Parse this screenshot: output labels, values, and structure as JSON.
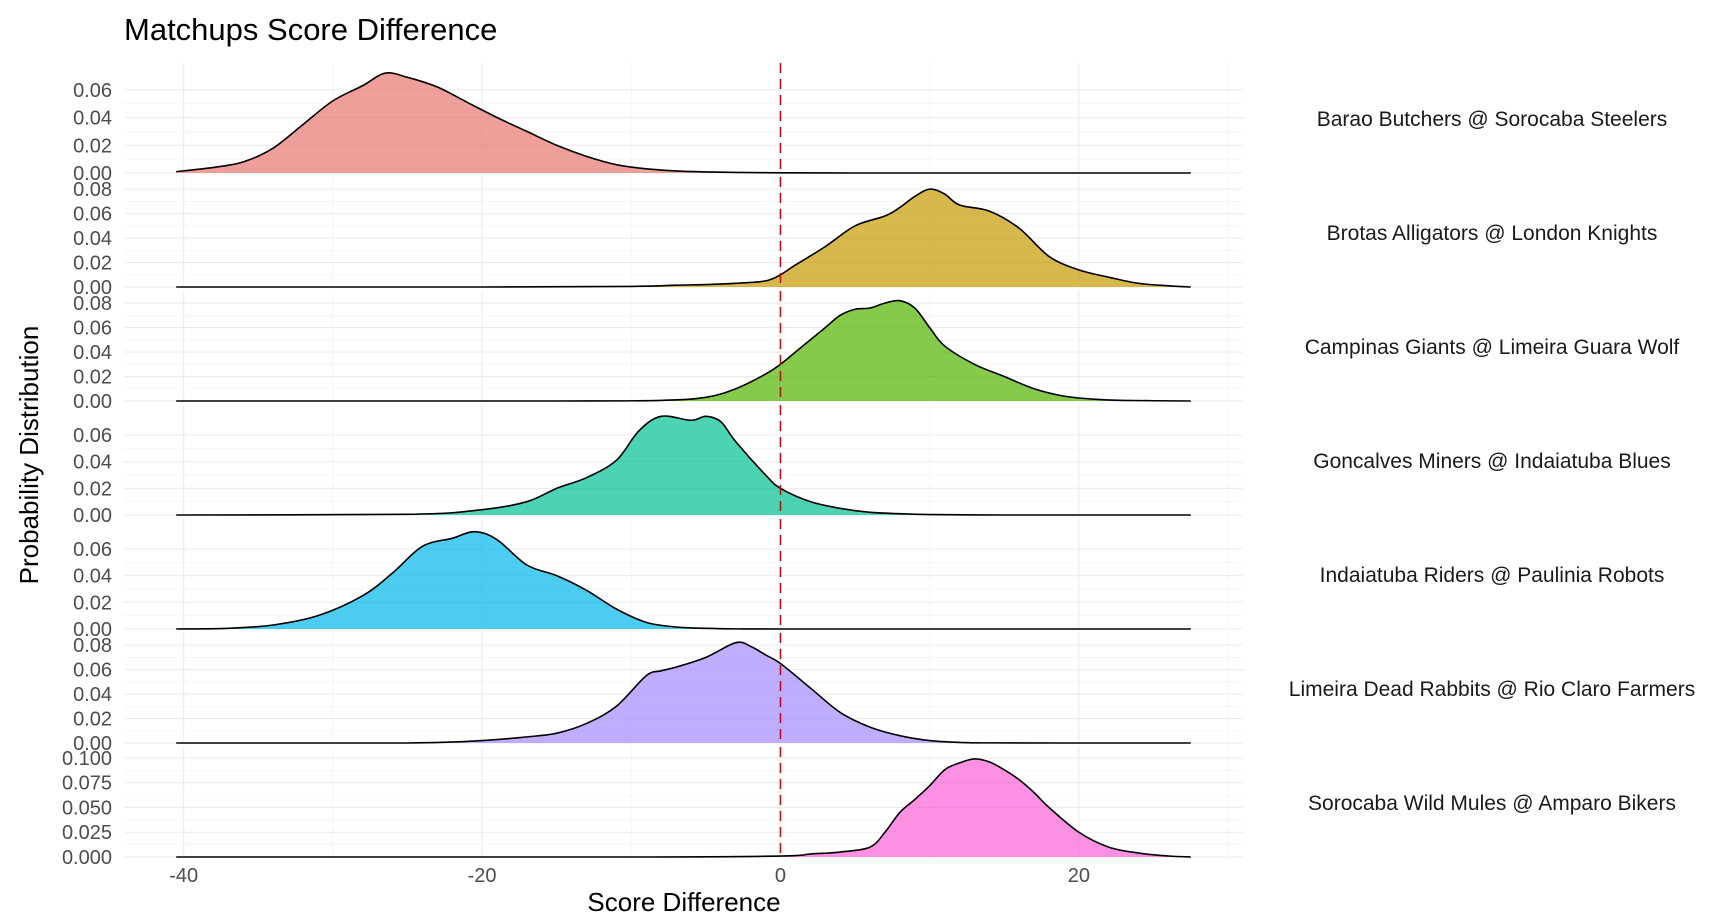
{
  "chart_data": {
    "type": "area",
    "title": "Matchups Score Difference",
    "xlabel": "Score Difference",
    "ylabel": "Probability Distribution",
    "x_ticks": [
      -40,
      -20,
      0,
      20
    ],
    "x_tick_labels": [
      "-40",
      "-20",
      "0",
      "20"
    ],
    "xlim": [
      -44,
      31
    ],
    "reference_line": {
      "x": 0,
      "style": "dashed",
      "color": "#e00000"
    },
    "grid": true,
    "legend": "none",
    "panels": [
      {
        "name": "Barao Butchers @ Sorocaba Steelers",
        "color": "#E8766D",
        "y_ticks": [
          0.0,
          0.02,
          0.04,
          0.06
        ],
        "y_tick_labels": [
          "0.00",
          "0.02",
          "0.04",
          "0.06"
        ],
        "ylim": [
          0,
          0.075
        ],
        "x": [
          -40.5,
          -38,
          -36,
          -34,
          -32,
          -30,
          -28,
          -26.5,
          -25,
          -23,
          -21,
          -19,
          -17,
          -15,
          -13,
          -11,
          -9,
          -7,
          -5,
          -3,
          0,
          5,
          10,
          20,
          27.5
        ],
        "y": [
          0.001,
          0.004,
          0.008,
          0.018,
          0.035,
          0.052,
          0.063,
          0.072,
          0.069,
          0.062,
          0.051,
          0.04,
          0.03,
          0.02,
          0.012,
          0.006,
          0.003,
          0.0015,
          0.0008,
          0.0004,
          0.0001,
          0.0,
          0.0,
          0.0,
          0.0
        ]
      },
      {
        "name": "Brotas Alligators @ London Knights",
        "color": "#C49A00",
        "y_ticks": [
          0.0,
          0.02,
          0.04,
          0.06,
          0.08
        ],
        "y_tick_labels": [
          "0.00",
          "0.02",
          "0.04",
          "0.06",
          "0.08"
        ],
        "ylim": [
          0,
          0.085
        ],
        "x": [
          -40.5,
          -20,
          -10,
          -7,
          -5,
          -3,
          -1,
          0,
          1,
          3,
          5,
          7,
          8,
          9,
          10,
          11,
          12,
          14,
          16,
          18,
          20,
          22,
          24,
          26,
          27.5
        ],
        "y": [
          0.0,
          0.0,
          0.0005,
          0.0015,
          0.002,
          0.003,
          0.005,
          0.01,
          0.018,
          0.033,
          0.05,
          0.058,
          0.065,
          0.074,
          0.08,
          0.076,
          0.067,
          0.062,
          0.048,
          0.025,
          0.014,
          0.008,
          0.003,
          0.001,
          0.0
        ]
      },
      {
        "name": "Campinas Giants @ Limeira Guara Wolf",
        "color": "#53B400",
        "y_ticks": [
          0.0,
          0.02,
          0.04,
          0.06,
          0.08
        ],
        "y_tick_labels": [
          "0.00",
          "0.02",
          "0.04",
          "0.06",
          "0.08"
        ],
        "ylim": [
          0,
          0.085
        ],
        "x": [
          -40.5,
          -15,
          -8,
          -5,
          -3,
          -1,
          0,
          1,
          2,
          3,
          4,
          5,
          6,
          7,
          8,
          9,
          10,
          11,
          13,
          15,
          17,
          19,
          21,
          23,
          27.5
        ],
        "y": [
          0.0,
          0.0,
          0.0005,
          0.003,
          0.01,
          0.022,
          0.03,
          0.04,
          0.05,
          0.06,
          0.07,
          0.075,
          0.076,
          0.08,
          0.082,
          0.076,
          0.06,
          0.045,
          0.03,
          0.02,
          0.01,
          0.004,
          0.0015,
          0.0005,
          0.0
        ]
      },
      {
        "name": "Goncalves Miners @ Indaiatuba Blues",
        "color": "#00C094",
        "y_ticks": [
          0.0,
          0.02,
          0.04,
          0.06
        ],
        "y_tick_labels": [
          "0.00",
          "0.02",
          "0.04",
          "0.06"
        ],
        "ylim": [
          0,
          0.078
        ],
        "x": [
          -40.5,
          -25,
          -20,
          -17,
          -15,
          -13,
          -11,
          -9.5,
          -8,
          -6,
          -5,
          -4,
          -3,
          -1,
          0,
          2,
          4,
          6,
          8,
          10,
          15,
          20,
          27.5
        ],
        "y": [
          0.0,
          0.0005,
          0.004,
          0.01,
          0.02,
          0.028,
          0.041,
          0.063,
          0.074,
          0.071,
          0.074,
          0.07,
          0.055,
          0.03,
          0.02,
          0.01,
          0.005,
          0.002,
          0.001,
          0.0003,
          0.0,
          0.0,
          0.0
        ]
      },
      {
        "name": "Indaiatuba Riders @ Paulinia Robots",
        "color": "#00B6EB",
        "y_ticks": [
          0.0,
          0.02,
          0.04,
          0.06
        ],
        "y_tick_labels": [
          "0.00",
          "0.02",
          "0.04",
          "0.06"
        ],
        "ylim": [
          0,
          0.078
        ],
        "x": [
          -40.5,
          -37,
          -34,
          -31,
          -28,
          -26,
          -24,
          -22,
          -20.5,
          -19,
          -17,
          -15,
          -13,
          -11,
          -9,
          -7,
          -5,
          -3,
          0,
          10,
          27.5
        ],
        "y": [
          0.0,
          0.0005,
          0.003,
          0.01,
          0.025,
          0.042,
          0.062,
          0.068,
          0.073,
          0.067,
          0.048,
          0.04,
          0.029,
          0.015,
          0.005,
          0.0015,
          0.0005,
          0.0001,
          0.0,
          0.0,
          0.0
        ]
      },
      {
        "name": "Limeira Dead Rabbits @ Rio Claro Farmers",
        "color": "#A58AFF",
        "y_ticks": [
          0.0,
          0.02,
          0.04,
          0.06,
          0.08
        ],
        "y_tick_labels": [
          "0.00",
          "0.02",
          "0.04",
          "0.06",
          "0.08"
        ],
        "ylim": [
          0,
          0.085
        ],
        "x": [
          -40.5,
          -25,
          -20,
          -17,
          -15,
          -13,
          -11,
          -9,
          -8,
          -7,
          -5,
          -3,
          -2,
          -1,
          0,
          2,
          4,
          6,
          8,
          10,
          12,
          14,
          20,
          27.5
        ],
        "y": [
          0.0,
          0.0,
          0.002,
          0.005,
          0.008,
          0.016,
          0.03,
          0.055,
          0.059,
          0.062,
          0.07,
          0.082,
          0.079,
          0.072,
          0.065,
          0.045,
          0.025,
          0.013,
          0.006,
          0.002,
          0.0005,
          0.0001,
          0.0,
          0.0
        ]
      },
      {
        "name": "Sorocaba Wild Mules @ Amparo Bikers",
        "color": "#FB61D7",
        "y_ticks": [
          0.0,
          0.025,
          0.05,
          0.075,
          0.1
        ],
        "y_tick_labels": [
          "0.000",
          "0.025",
          "0.050",
          "0.075",
          "0.100"
        ],
        "ylim": [
          0,
          0.105
        ],
        "x": [
          -40.5,
          -10,
          0,
          2,
          4,
          6,
          7,
          8,
          9,
          10,
          11,
          12,
          13,
          14,
          15,
          16,
          17,
          18,
          20,
          22,
          24,
          26,
          27.5
        ],
        "y": [
          0.0,
          0.0,
          0.001,
          0.003,
          0.005,
          0.01,
          0.025,
          0.045,
          0.058,
          0.072,
          0.088,
          0.095,
          0.099,
          0.096,
          0.088,
          0.078,
          0.065,
          0.05,
          0.025,
          0.01,
          0.004,
          0.001,
          0.0
        ]
      }
    ]
  }
}
